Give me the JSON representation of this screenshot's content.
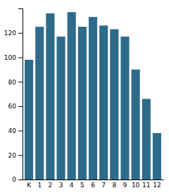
{
  "chart_data": {
    "type": "bar",
    "categories": [
      "K",
      "1",
      "2",
      "3",
      "4",
      "5",
      "6",
      "7",
      "8",
      "9",
      "10",
      "11",
      "12"
    ],
    "values": [
      98,
      125,
      136,
      117,
      137,
      125,
      133,
      126,
      123,
      117,
      90,
      66,
      38
    ],
    "color": "#2e6b8a",
    "ylim": [
      0,
      140
    ],
    "yticks": [
      0,
      20,
      40,
      60,
      80,
      100,
      120
    ],
    "grid": false
  }
}
